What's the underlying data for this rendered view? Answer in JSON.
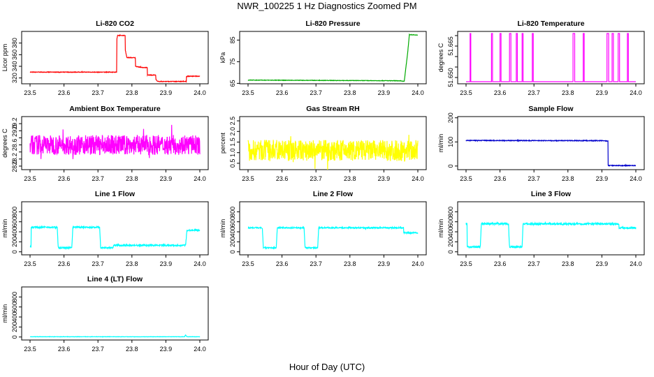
{
  "figure": {
    "title": "NWR_100225  1 Hz Diagnostics Zoomed PM",
    "xlabel": "Hour of Day (UTC)"
  },
  "chart_data": [
    {
      "type": "line",
      "title": "Li-820 CO2",
      "ylabel": "Licor ppm",
      "color": "#ff0000",
      "xlim": [
        23.5,
        24.0
      ],
      "ylim": [
        310,
        400
      ],
      "xticks": [
        "23.5",
        "23.6",
        "23.7",
        "23.8",
        "23.9",
        "24.0"
      ],
      "yticks": [
        {
          "v": 320,
          "label": "320"
        },
        {
          "v": 340,
          "label": "340"
        },
        {
          "v": 360,
          "label": "360"
        },
        {
          "v": 380,
          "label": "380"
        }
      ],
      "noise": 0.5,
      "x": [
        23.5,
        23.755,
        23.755,
        23.758,
        23.758,
        23.78,
        23.78,
        23.785,
        23.785,
        23.81,
        23.81,
        23.83,
        23.83,
        23.845,
        23.845,
        23.87,
        23.87,
        23.875,
        23.875,
        23.96,
        23.96,
        23.965,
        23.965,
        24.0
      ],
      "y": [
        330,
        330,
        385,
        393,
        393,
        393,
        370,
        355,
        355,
        355,
        340,
        338,
        338,
        338,
        325,
        325,
        318,
        314,
        314,
        314,
        322,
        323,
        323,
        323
      ]
    },
    {
      "type": "line",
      "title": "Li-820 Pressure",
      "ylabel": "kPa",
      "color": "#00aa00",
      "xlim": [
        23.5,
        24.0
      ],
      "ylim": [
        64.8,
        89
      ],
      "xticks": [
        "23.5",
        "23.6",
        "23.7",
        "23.8",
        "23.9",
        "24.0"
      ],
      "yticks": [
        {
          "v": 65,
          "label": "65"
        },
        {
          "v": 75,
          "label": "75"
        },
        {
          "v": 85,
          "label": "85"
        }
      ],
      "noise": 0.1,
      "x": [
        23.5,
        23.95,
        23.955,
        23.96,
        23.97,
        23.975,
        24.0
      ],
      "y": [
        66.5,
        66.2,
        66.0,
        66.0,
        79,
        87.5,
        87.3
      ]
    },
    {
      "type": "line",
      "title": "Li-820 Temperature",
      "ylabel": "degrees C",
      "color": "#ff00ff",
      "xlim": [
        23.5,
        24.0
      ],
      "ylim": [
        51.647,
        51.672
      ],
      "xticks": [
        "23.5",
        "23.6",
        "23.7",
        "23.8",
        "23.9",
        "24.0"
      ],
      "yticks": [
        {
          "v": 51.65,
          "label": "51.650"
        },
        {
          "v": 51.655,
          "label": ""
        },
        {
          "v": 51.66,
          "label": ""
        },
        {
          "v": 51.665,
          "label": "51.665"
        },
        {
          "v": 51.67,
          "label": ""
        }
      ],
      "noise": 0,
      "x": [
        23.5,
        23.512,
        23.512,
        23.514,
        23.514,
        23.575,
        23.575,
        23.578,
        23.578,
        23.6,
        23.6,
        23.603,
        23.603,
        23.628,
        23.628,
        23.632,
        23.632,
        23.648,
        23.648,
        23.651,
        23.651,
        23.665,
        23.665,
        23.668,
        23.668,
        23.695,
        23.695,
        23.698,
        23.698,
        23.815,
        23.815,
        23.82,
        23.82,
        23.845,
        23.845,
        23.848,
        23.848,
        23.915,
        23.915,
        23.92,
        23.92,
        23.93,
        23.93,
        23.934,
        23.934,
        23.948,
        23.948,
        23.952,
        23.952,
        23.975,
        23.975,
        23.978,
        23.978,
        24.0
      ],
      "y": [
        51.648,
        51.648,
        51.671,
        51.671,
        51.648,
        51.648,
        51.671,
        51.671,
        51.648,
        51.648,
        51.671,
        51.671,
        51.648,
        51.648,
        51.671,
        51.671,
        51.648,
        51.648,
        51.671,
        51.671,
        51.648,
        51.648,
        51.671,
        51.671,
        51.648,
        51.648,
        51.671,
        51.671,
        51.648,
        51.648,
        51.671,
        51.671,
        51.648,
        51.648,
        51.671,
        51.671,
        51.648,
        51.648,
        51.671,
        51.671,
        51.648,
        51.648,
        51.671,
        51.671,
        51.648,
        51.648,
        51.671,
        51.671,
        51.648,
        51.648,
        51.671,
        51.671,
        51.648,
        51.648
      ]
    },
    {
      "type": "line",
      "title": "Ambient Box Temperature",
      "ylabel": "degrees C",
      "color": "#ff00ff",
      "xlim": [
        23.5,
        24.0
      ],
      "ylim": [
        27.9,
        29.4
      ],
      "xticks": [
        "23.5",
        "23.6",
        "23.7",
        "23.8",
        "23.9",
        "24.0"
      ],
      "yticks": [
        {
          "v": 28.0,
          "label": "28.0"
        },
        {
          "v": 28.2,
          "label": "28.2"
        },
        {
          "v": 28.4,
          "label": ""
        },
        {
          "v": 28.6,
          "label": "28.6"
        },
        {
          "v": 28.8,
          "label": ""
        },
        {
          "v": 29.0,
          "label": "29.0"
        },
        {
          "v": 29.2,
          "label": "29.2"
        }
      ],
      "noise": 0.28,
      "x": [
        23.5,
        24.0
      ],
      "y": [
        28.6,
        28.6
      ]
    },
    {
      "type": "line",
      "title": "Gas Stream RH",
      "ylabel": "percent",
      "color": "#ffff00",
      "xlim": [
        23.5,
        24.0
      ],
      "ylim": [
        0.2,
        2.7
      ],
      "xticks": [
        "23.5",
        "23.6",
        "23.7",
        "23.8",
        "23.9",
        "24.0"
      ],
      "yticks": [
        {
          "v": 0.5,
          "label": "0.5"
        },
        {
          "v": 1.0,
          "label": "1.0"
        },
        {
          "v": 1.5,
          "label": "1.5"
        },
        {
          "v": 2.0,
          "label": "2.0"
        },
        {
          "v": 2.5,
          "label": "2.5"
        }
      ],
      "noise": 0.5,
      "x": [
        23.5,
        24.0
      ],
      "y": [
        1.1,
        1.1
      ]
    },
    {
      "type": "line",
      "title": "Sample Flow",
      "ylabel": "ml/min",
      "color": "#0000cc",
      "xlim": [
        23.5,
        24.0
      ],
      "ylim": [
        -15,
        205
      ],
      "xticks": [
        "23.5",
        "23.6",
        "23.7",
        "23.8",
        "23.9",
        "24.0"
      ],
      "yticks": [
        {
          "v": 0,
          "label": "0"
        },
        {
          "v": 100,
          "label": "100"
        },
        {
          "v": 200,
          "label": "200"
        }
      ],
      "noise": 1.5,
      "x": [
        23.5,
        23.91,
        23.918,
        23.918,
        24.0
      ],
      "y": [
        106,
        105,
        103,
        2,
        2
      ]
    },
    {
      "type": "line",
      "title": "Line 1 Flow",
      "ylabel": "ml/min",
      "color": "#00ffff",
      "xlim": [
        23.5,
        24.0
      ],
      "ylim": [
        -60,
        1000
      ],
      "xticks": [
        "23.5",
        "23.6",
        "23.7",
        "23.8",
        "23.9",
        "24.0"
      ],
      "yticks": [
        {
          "v": 0,
          "label": "0"
        },
        {
          "v": 200,
          "label": "200"
        },
        {
          "v": 400,
          "label": "400"
        },
        {
          "v": 600,
          "label": "600"
        },
        {
          "v": 800,
          "label": "800"
        }
      ],
      "noise": 15,
      "x": [
        23.5,
        23.503,
        23.503,
        23.58,
        23.58,
        23.583,
        23.583,
        23.623,
        23.623,
        23.626,
        23.626,
        23.705,
        23.705,
        23.708,
        23.708,
        23.745,
        23.745,
        23.958,
        23.958,
        23.962,
        23.962,
        24.0
      ],
      "y": [
        100,
        100,
        490,
        490,
        490,
        80,
        80,
        80,
        80,
        490,
        490,
        490,
        490,
        80,
        80,
        80,
        130,
        130,
        130,
        430,
        430,
        430
      ]
    },
    {
      "type": "line",
      "title": "Line 2 Flow",
      "ylabel": "ml/min",
      "color": "#00ffff",
      "xlim": [
        23.5,
        24.0
      ],
      "ylim": [
        -60,
        1000
      ],
      "xticks": [
        "23.5",
        "23.6",
        "23.7",
        "23.8",
        "23.9",
        "24.0"
      ],
      "yticks": [
        {
          "v": 0,
          "label": "0"
        },
        {
          "v": 200,
          "label": "200"
        },
        {
          "v": 400,
          "label": "400"
        },
        {
          "v": 600,
          "label": "600"
        },
        {
          "v": 800,
          "label": "800"
        }
      ],
      "noise": 12,
      "x": [
        23.5,
        23.542,
        23.542,
        23.545,
        23.545,
        23.583,
        23.583,
        23.586,
        23.586,
        23.665,
        23.665,
        23.668,
        23.668,
        23.705,
        23.705,
        23.708,
        23.708,
        23.958,
        23.958,
        24.0
      ],
      "y": [
        480,
        480,
        480,
        80,
        80,
        80,
        80,
        480,
        480,
        480,
        480,
        80,
        80,
        80,
        80,
        480,
        480,
        480,
        380,
        380
      ]
    },
    {
      "type": "line",
      "title": "Line 3 Flow",
      "ylabel": "ml/min",
      "color": "#00ffff",
      "xlim": [
        23.5,
        24.0
      ],
      "ylim": [
        -60,
        1000
      ],
      "xticks": [
        "23.5",
        "23.6",
        "23.7",
        "23.8",
        "23.9",
        "24.0"
      ],
      "yticks": [
        {
          "v": 0,
          "label": "0"
        },
        {
          "v": 200,
          "label": "200"
        },
        {
          "v": 400,
          "label": "400"
        },
        {
          "v": 600,
          "label": "600"
        },
        {
          "v": 800,
          "label": "800"
        }
      ],
      "noise": 18,
      "x": [
        23.5,
        23.503,
        23.503,
        23.542,
        23.542,
        23.545,
        23.545,
        23.625,
        23.625,
        23.628,
        23.628,
        23.665,
        23.665,
        23.668,
        23.668,
        23.95,
        23.95,
        24.0
      ],
      "y": [
        560,
        560,
        100,
        100,
        100,
        560,
        560,
        560,
        560,
        100,
        100,
        100,
        100,
        560,
        560,
        560,
        480,
        480
      ]
    },
    {
      "type": "line",
      "title": "Line 4 (LT) Flow",
      "ylabel": "ml/min",
      "color": "#00ffff",
      "xlim": [
        23.5,
        24.0
      ],
      "ylim": [
        -60,
        1000
      ],
      "xticks": [
        "23.5",
        "23.6",
        "23.7",
        "23.8",
        "23.9",
        "24.0"
      ],
      "yticks": [
        {
          "v": 0,
          "label": "0"
        },
        {
          "v": 200,
          "label": "200"
        },
        {
          "v": 400,
          "label": "400"
        },
        {
          "v": 600,
          "label": "600"
        },
        {
          "v": 800,
          "label": "800"
        }
      ],
      "noise": 3,
      "x": [
        23.5,
        23.955,
        23.958,
        23.962,
        23.965,
        24.0
      ],
      "y": [
        5,
        5,
        40,
        5,
        5,
        5
      ]
    }
  ]
}
